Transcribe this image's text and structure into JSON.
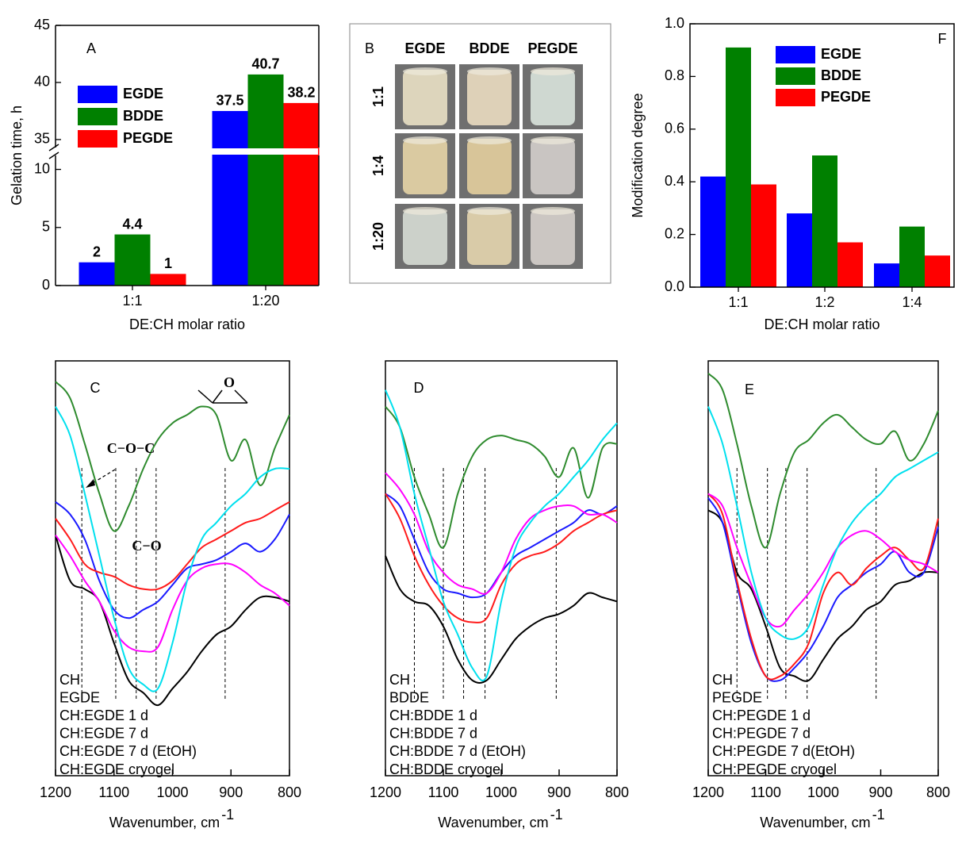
{
  "chart_data": [
    {
      "type": "bar",
      "label": "A",
      "y_label": "Gelation time, h",
      "x_label": "DE:CH molar ratio",
      "categories": [
        "1:1",
        "1:20"
      ],
      "series": [
        {
          "name": "EGDE",
          "color": "#0000ff",
          "values": [
            2,
            37.5
          ]
        },
        {
          "name": "BDDE",
          "color": "#008000",
          "values": [
            4.4,
            40.7
          ]
        },
        {
          "name": "PEGDE",
          "color": "#ff0000",
          "values": [
            1,
            38.2
          ]
        }
      ],
      "ylim": [
        0,
        45
      ],
      "y_break": [
        11.2,
        34.3
      ],
      "yticks": [
        0,
        5,
        10,
        35,
        40,
        45
      ]
    },
    {
      "type": "bar",
      "label": "F",
      "y_label": "Modification degree",
      "x_label": "DE:CH molar ratio",
      "categories": [
        "1:1",
        "1:2",
        "1:4"
      ],
      "series": [
        {
          "name": "EGDE",
          "color": "#0000ff",
          "values": [
            0.42,
            0.28,
            0.09
          ]
        },
        {
          "name": "BDDE",
          "color": "#008000",
          "values": [
            0.91,
            0.5,
            0.23
          ]
        },
        {
          "name": "PEGDE",
          "color": "#ff0000",
          "values": [
            0.39,
            0.17,
            0.12
          ]
        }
      ],
      "ylim": [
        0,
        1
      ],
      "yticks": [
        {
          "value": 0,
          "label": "0.0"
        },
        0.2,
        0.4,
        0.6,
        0.8,
        {
          "value": 1,
          "label": "1.0"
        }
      ]
    },
    {
      "type": "line",
      "label": "C",
      "x_label": "Wavenumber, cm",
      "x_label_sup": "-1",
      "x": [
        1200,
        1175,
        1150,
        1125,
        1100,
        1075,
        1050,
        1025,
        1000,
        975,
        950,
        925,
        900,
        875,
        850,
        825,
        800
      ],
      "xlim": [
        1200,
        800
      ],
      "xticks": [
        1200,
        1100,
        1000,
        900,
        800
      ],
      "ylim": [
        0,
        100
      ],
      "vlines": [
        1155,
        1097,
        1062,
        1028,
        910
      ],
      "annotations": [
        "C−O−C",
        "C−O",
        "O"
      ],
      "series": [
        {
          "name": "CH",
          "color": "#000000",
          "values": [
            58,
            47,
            45,
            42,
            32,
            23,
            20,
            17,
            21,
            25,
            30,
            34,
            36,
            40,
            43,
            43,
            42
          ]
        },
        {
          "name": "EGDE",
          "color": "#2e8b2e",
          "values": [
            95,
            91,
            80,
            68,
            59,
            65,
            74,
            81,
            85,
            87,
            89,
            87,
            76,
            81,
            70,
            79,
            87
          ]
        },
        {
          "name": "CH:EGDE 1 d",
          "color": "#1a1aff",
          "values": [
            66,
            63,
            57,
            47,
            40,
            38,
            40,
            42,
            46,
            50,
            51,
            52,
            54,
            56,
            54,
            57,
            63
          ]
        },
        {
          "name": "CH:EGDE 7 d",
          "color": "#ff1a1a",
          "values": [
            62,
            57,
            51,
            49,
            48,
            46,
            45,
            45,
            47,
            51,
            55,
            57,
            59,
            61,
            62,
            64,
            66
          ]
        },
        {
          "name": "CH:EGDE 7 d (EtOH)",
          "color": "#ff00ff",
          "values": [
            58,
            53,
            47,
            42,
            35,
            31,
            30,
            31,
            40,
            47,
            50,
            51,
            51,
            49,
            46,
            44,
            41
          ]
        },
        {
          "name": "CH:EGDE cryogel",
          "color": "#00e0ee",
          "values": [
            89,
            82,
            68,
            53,
            38,
            26,
            22,
            21,
            32,
            47,
            57,
            61,
            65,
            68,
            72,
            74,
            74
          ]
        }
      ]
    },
    {
      "type": "line",
      "label": "D",
      "x_label": "Wavenumber, cm",
      "x_label_sup": "-1",
      "x": [
        1200,
        1175,
        1150,
        1125,
        1100,
        1075,
        1050,
        1025,
        1000,
        975,
        950,
        925,
        900,
        875,
        850,
        825,
        800
      ],
      "xlim": [
        1200,
        800
      ],
      "xticks": [
        1200,
        1100,
        1000,
        900,
        800
      ],
      "ylim": [
        0,
        100
      ],
      "vlines": [
        1150,
        1100,
        1065,
        1028,
        905
      ],
      "series": [
        {
          "name": "CH",
          "color": "#000000",
          "values": [
            53,
            45,
            42,
            41,
            36,
            28,
            23,
            23,
            28,
            33,
            36,
            38,
            39,
            41,
            44,
            43,
            42
          ]
        },
        {
          "name": "BDDE",
          "color": "#2e8b2e",
          "values": [
            89,
            84,
            72,
            63,
            55,
            68,
            77,
            81,
            82,
            81,
            80,
            77,
            72,
            79,
            67,
            79,
            80
          ]
        },
        {
          "name": "CH:BDDE 1 d",
          "color": "#1a1aff",
          "values": [
            68,
            65,
            57,
            49,
            45,
            44,
            43,
            44,
            49,
            53,
            55,
            57,
            59,
            61,
            64,
            63,
            65
          ]
        },
        {
          "name": "CH:BDDE 7 d",
          "color": "#ff1a1a",
          "values": [
            68,
            62,
            53,
            46,
            41,
            38,
            37,
            38,
            46,
            51,
            53,
            54,
            56,
            59,
            61,
            63,
            64
          ]
        },
        {
          "name": "CH:BDDE 7 d (EtOH)",
          "color": "#ff00ff",
          "values": [
            73,
            69,
            63,
            54,
            49,
            46,
            45,
            44,
            49,
            57,
            62,
            64,
            65,
            65,
            63,
            63,
            61
          ]
        },
        {
          "name": "CH:BDDE cryogel",
          "color": "#00e0ee",
          "values": [
            93,
            84,
            68,
            55,
            42,
            34,
            26,
            24,
            42,
            55,
            61,
            65,
            68,
            72,
            76,
            81,
            85
          ]
        }
      ]
    },
    {
      "type": "line",
      "label": "E",
      "x_label": "Wavenumber, cm",
      "x_label_sup": "-1",
      "x": [
        1200,
        1175,
        1150,
        1125,
        1100,
        1075,
        1050,
        1025,
        1000,
        975,
        950,
        925,
        900,
        875,
        850,
        825,
        800
      ],
      "xlim": [
        1200,
        800
      ],
      "xticks": [
        1200,
        1100,
        1000,
        900,
        800
      ],
      "ylim": [
        0,
        100
      ],
      "vlines": [
        1150,
        1097,
        1065,
        1028,
        908
      ],
      "series": [
        {
          "name": "CH",
          "color": "#000000",
          "values": [
            64,
            61,
            49,
            45,
            36,
            26,
            24,
            23,
            28,
            33,
            36,
            40,
            42,
            46,
            47,
            49,
            49
          ]
        },
        {
          "name": "PEGDE",
          "color": "#2e8b2e",
          "values": [
            97,
            93,
            80,
            65,
            55,
            68,
            78,
            81,
            85,
            87,
            84,
            81,
            80,
            83,
            76,
            80,
            88
          ]
        },
        {
          "name": "CH:PEGDE 1 d",
          "color": "#1a1aff",
          "values": [
            67,
            61,
            46,
            32,
            24,
            23,
            26,
            30,
            36,
            43,
            46,
            49,
            51,
            54,
            49,
            49,
            60
          ]
        },
        {
          "name": "CH:PEGDE 7 d",
          "color": "#ff1a1a",
          "values": [
            68,
            63,
            47,
            33,
            24,
            24,
            27,
            32,
            44,
            49,
            46,
            50,
            53,
            55,
            52,
            50,
            62
          ]
        },
        {
          "name": "CH:PEGDE 7 d(EtOH)",
          "color": "#ff00ff",
          "values": [
            68,
            65,
            55,
            46,
            38,
            36,
            40,
            44,
            49,
            55,
            58,
            59,
            57,
            54,
            52,
            51,
            49
          ]
        },
        {
          "name": "CH:PEGDE cryogel",
          "color": "#00e0ee",
          "values": [
            89,
            80,
            65,
            49,
            38,
            34,
            33,
            36,
            46,
            55,
            61,
            65,
            68,
            72,
            74,
            76,
            78
          ]
        }
      ]
    }
  ],
  "photo_panel": {
    "label": "B",
    "columns": [
      "EGDE",
      "BDDE",
      "PEGDE"
    ],
    "rows": [
      "1:1",
      "1:4",
      "1:20"
    ]
  }
}
